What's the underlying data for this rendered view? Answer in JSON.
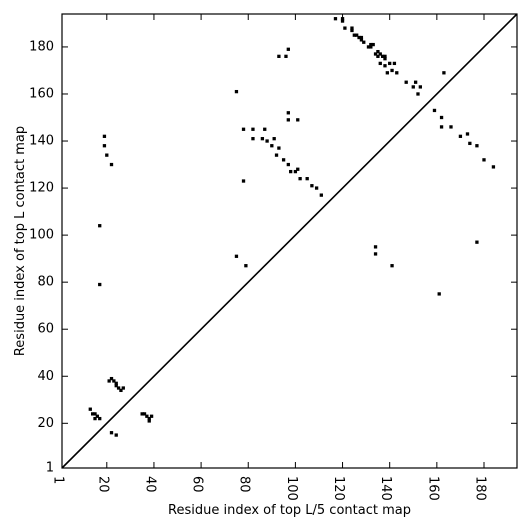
{
  "chart_data": {
    "type": "scatter",
    "xlabel": "Residue index of top L/5 contact map",
    "ylabel": "Residue index of top L contact map",
    "xlim": [
      1,
      194
    ],
    "ylim": [
      1,
      194
    ],
    "x_ticks": [
      1,
      20,
      40,
      60,
      80,
      100,
      120,
      140,
      160,
      180
    ],
    "y_ticks": [
      1,
      20,
      40,
      60,
      80,
      100,
      120,
      140,
      160,
      180
    ],
    "diagonal": true,
    "grid": false,
    "marker_color": "#000000",
    "series": [
      {
        "points": [
          [
            117,
            192
          ],
          [
            120,
            191
          ],
          [
            120,
            192
          ],
          [
            121,
            188
          ],
          [
            124,
            188
          ],
          [
            124,
            187
          ],
          [
            125,
            185
          ],
          [
            126,
            185
          ],
          [
            127,
            184
          ],
          [
            128,
            184
          ],
          [
            128,
            183
          ],
          [
            129,
            182
          ],
          [
            131,
            180
          ],
          [
            132,
            181
          ],
          [
            132,
            180
          ],
          [
            133,
            181
          ],
          [
            134,
            177
          ],
          [
            135,
            178
          ],
          [
            135,
            176
          ],
          [
            136,
            177
          ],
          [
            137,
            176
          ],
          [
            138,
            176
          ],
          [
            138,
            175
          ],
          [
            136,
            173
          ],
          [
            138,
            172
          ],
          [
            140,
            173
          ],
          [
            142,
            173
          ],
          [
            141,
            170
          ],
          [
            143,
            169
          ],
          [
            139,
            169
          ],
          [
            147,
            165
          ],
          [
            151,
            165
          ],
          [
            150,
            163
          ],
          [
            152,
            160
          ],
          [
            153,
            163
          ],
          [
            159,
            153
          ],
          [
            162,
            150
          ],
          [
            162,
            146
          ],
          [
            166,
            146
          ],
          [
            170,
            142
          ],
          [
            173,
            143
          ],
          [
            174,
            139
          ],
          [
            177,
            138
          ],
          [
            180,
            132
          ],
          [
            184,
            129
          ],
          [
            163,
            169
          ],
          [
            93,
            176
          ],
          [
            96,
            176
          ],
          [
            97,
            179
          ],
          [
            75,
            161
          ],
          [
            78,
            145
          ],
          [
            82,
            145
          ],
          [
            82,
            141
          ],
          [
            87,
            145
          ],
          [
            86,
            141
          ],
          [
            88,
            140
          ],
          [
            90,
            138
          ],
          [
            93,
            137
          ],
          [
            91,
            141
          ],
          [
            92,
            134
          ],
          [
            95,
            132
          ],
          [
            97,
            130
          ],
          [
            98,
            127
          ],
          [
            100,
            127
          ],
          [
            101,
            128
          ],
          [
            102,
            124
          ],
          [
            105,
            124
          ],
          [
            107,
            121
          ],
          [
            109,
            120
          ],
          [
            111,
            117
          ],
          [
            97,
            152
          ],
          [
            97,
            149
          ],
          [
            101,
            149
          ],
          [
            78,
            123
          ],
          [
            19,
            142
          ],
          [
            19,
            138
          ],
          [
            20,
            134
          ],
          [
            22,
            130
          ],
          [
            17,
            104
          ],
          [
            75,
            91
          ],
          [
            79,
            87
          ],
          [
            17,
            79
          ],
          [
            134,
            95
          ],
          [
            134,
            92
          ],
          [
            141,
            87
          ],
          [
            177,
            97
          ],
          [
            161,
            75
          ],
          [
            21,
            38
          ],
          [
            22,
            39
          ],
          [
            23,
            38
          ],
          [
            24,
            37
          ],
          [
            24,
            36
          ],
          [
            25,
            35
          ],
          [
            26,
            34
          ],
          [
            27,
            35
          ],
          [
            13,
            26
          ],
          [
            14,
            24
          ],
          [
            15,
            24
          ],
          [
            16,
            23
          ],
          [
            17,
            22
          ],
          [
            15,
            22
          ],
          [
            22,
            16
          ],
          [
            24,
            15
          ],
          [
            35,
            24
          ],
          [
            36,
            24
          ],
          [
            37,
            23
          ],
          [
            38,
            22
          ],
          [
            39,
            23
          ],
          [
            38,
            21
          ]
        ]
      }
    ]
  }
}
